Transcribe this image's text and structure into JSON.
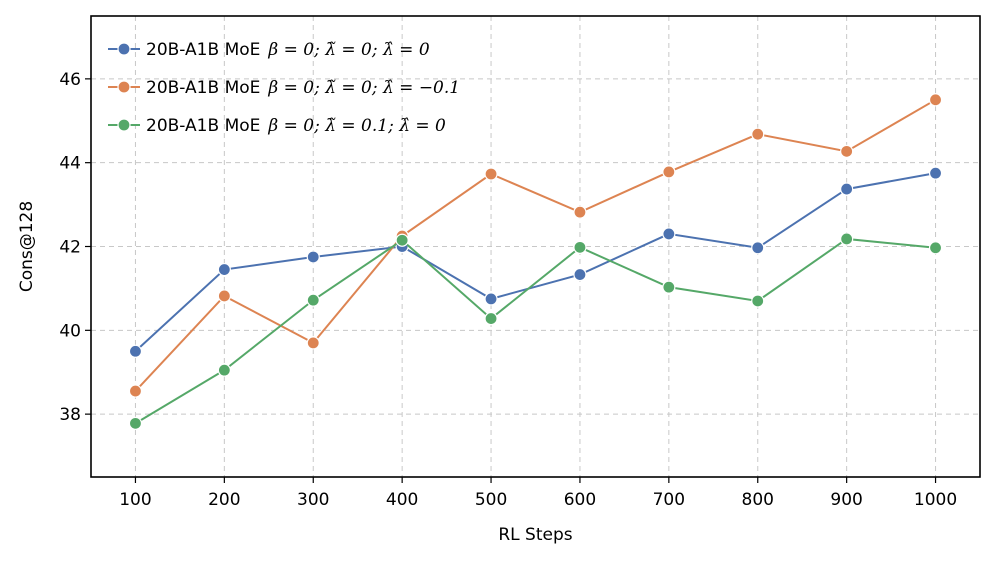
{
  "chart_data": {
    "type": "line",
    "title": "",
    "xlabel": "RL Steps",
    "ylabel": "Cons@128",
    "x": [
      100,
      200,
      300,
      400,
      500,
      600,
      700,
      800,
      900,
      1000
    ],
    "xticks": [
      "100",
      "200",
      "300",
      "400",
      "500",
      "600",
      "700",
      "800",
      "900",
      "1000"
    ],
    "yticks": [
      38,
      40,
      42,
      44,
      46
    ],
    "ylim": [
      36.5,
      47.5
    ],
    "grid": true,
    "legend_position": "top-left",
    "series": [
      {
        "name_prefix": "20B-A1B MoE",
        "name_math": "β = 0;  λ̃ = 0;  λ̂ = 0",
        "color": "#4c72b0",
        "values": [
          39.5,
          41.45,
          41.75,
          42.0,
          40.75,
          41.33,
          42.3,
          41.97,
          43.37,
          43.75
        ]
      },
      {
        "name_prefix": "20B-A1B MoE",
        "name_math": "β = 0;  λ̃ = 0;  λ̂ = −0.1",
        "color": "#dd8452",
        "values": [
          38.55,
          40.82,
          39.7,
          42.25,
          43.73,
          42.82,
          43.78,
          44.68,
          44.27,
          45.5
        ]
      },
      {
        "name_prefix": "20B-A1B MoE",
        "name_math": "β = 0;  λ̃ = 0.1;  λ̂ = 0",
        "color": "#55a868",
        "values": [
          37.78,
          39.05,
          40.72,
          42.15,
          40.28,
          41.98,
          41.03,
          40.7,
          42.18,
          41.97
        ]
      }
    ]
  }
}
